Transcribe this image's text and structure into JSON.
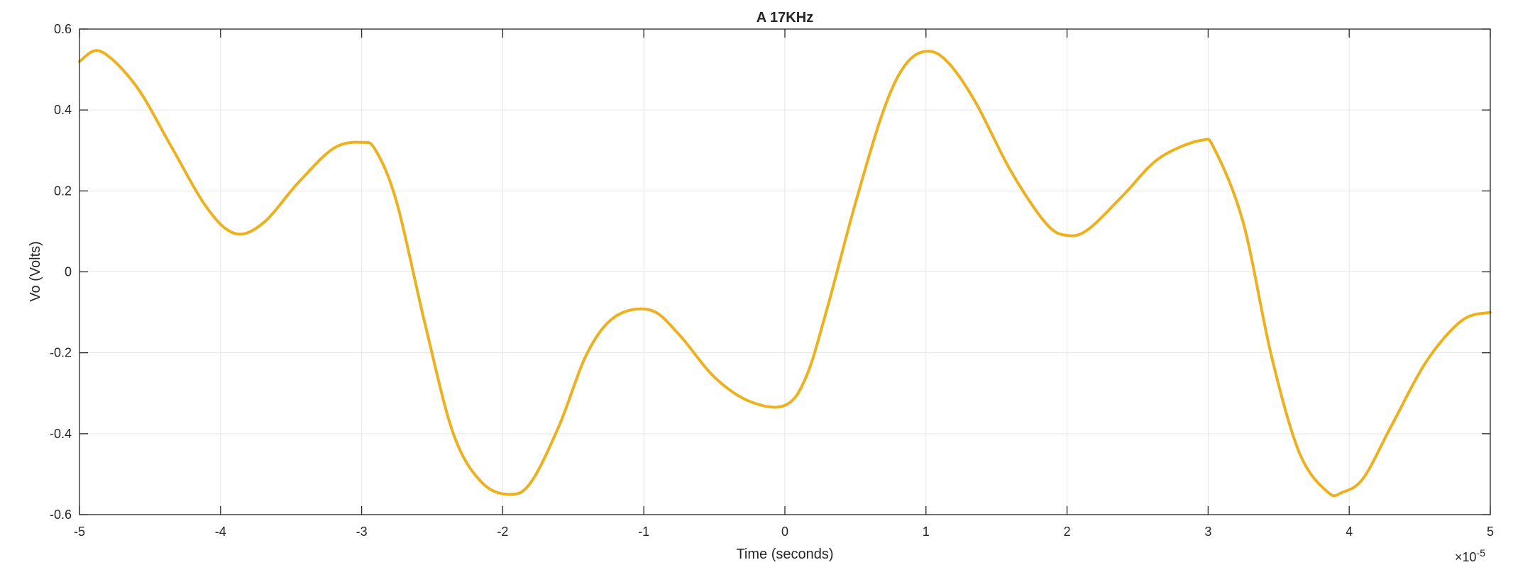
{
  "chart_data": {
    "type": "line",
    "title": "A 17KHz",
    "xlabel": "Time (seconds)",
    "ylabel": "Vo (Volts)",
    "x_exponent_label": "×10",
    "x_exponent_power": "-5",
    "xlim": [
      -5e-05,
      5e-05
    ],
    "ylim": [
      -0.6,
      0.6
    ],
    "x_ticks": [
      -5e-05,
      -4e-05,
      -3e-05,
      -2e-05,
      -1e-05,
      0,
      1e-05,
      2e-05,
      3e-05,
      4e-05,
      5e-05
    ],
    "x_tick_labels": [
      "-5",
      "-4",
      "-3",
      "-2",
      "-1",
      "0",
      "1",
      "2",
      "3",
      "4",
      "5"
    ],
    "y_ticks": [
      -0.6,
      -0.4,
      -0.2,
      0,
      0.2,
      0.4,
      0.6
    ],
    "y_tick_labels": [
      "-0.6",
      "-0.4",
      "-0.2",
      "0",
      "0.2",
      "0.4",
      "0.6"
    ],
    "grid": true,
    "line_color": "#EDB120",
    "series": [
      {
        "x": [
          -5e-05,
          -4.85e-05,
          -4.6e-05,
          -4.35e-05,
          -4.1e-05,
          -3.9e-05,
          -3.7e-05,
          -3.45e-05,
          -3.2e-05,
          -3e-05,
          -2.9e-05,
          -2.75e-05,
          -2.55e-05,
          -2.35e-05,
          -2.15e-05,
          -1.95e-05,
          -1.8e-05,
          -1.6e-05,
          -1.4e-05,
          -1.2e-05,
          -9.5e-06,
          -7.5e-06,
          -5e-06,
          -2.5e-06,
          0,
          1.5e-06,
          3e-06,
          5e-06,
          7e-06,
          8.5e-06,
          1e-05,
          1.15e-05,
          1.35e-05,
          1.6e-05,
          1.85e-05,
          2e-05,
          2.15e-05,
          2.4e-05,
          2.65e-05,
          2.95e-05,
          3.05e-05,
          3.25e-05,
          3.45e-05,
          3.65e-05,
          3.85e-05,
          3.95e-05,
          4.1e-05,
          4.3e-05,
          4.55e-05,
          4.8e-05,
          5e-05
        ],
        "y": [
          0.52,
          0.545,
          0.46,
          0.31,
          0.16,
          0.095,
          0.12,
          0.22,
          0.305,
          0.32,
          0.3,
          0.17,
          -0.13,
          -0.4,
          -0.52,
          -0.55,
          -0.52,
          -0.38,
          -0.2,
          -0.11,
          -0.095,
          -0.155,
          -0.26,
          -0.32,
          -0.33,
          -0.26,
          -0.09,
          0.17,
          0.4,
          0.51,
          0.545,
          0.52,
          0.42,
          0.25,
          0.12,
          0.09,
          0.105,
          0.19,
          0.28,
          0.325,
          0.3,
          0.12,
          -0.21,
          -0.45,
          -0.545,
          -0.545,
          -0.51,
          -0.38,
          -0.22,
          -0.12,
          -0.1
        ]
      }
    ]
  }
}
